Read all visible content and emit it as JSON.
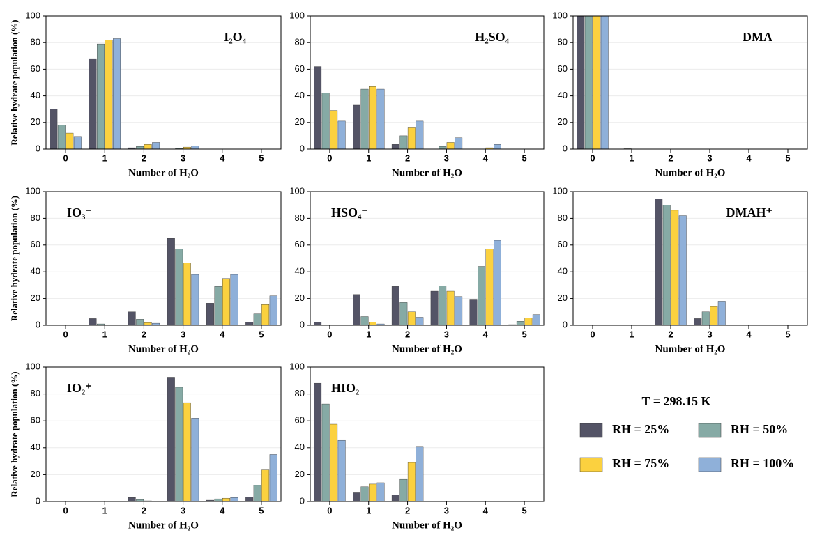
{
  "chart_data": [
    {
      "type": "bar",
      "title": "I₂O₄",
      "xlabel": "Number of H₂O",
      "ylabel": "Relative hydrate population (%)",
      "categories": [
        "0",
        "1",
        "2",
        "3",
        "4",
        "5"
      ],
      "ylim": [
        0,
        100
      ],
      "yticks": [
        0,
        20,
        40,
        60,
        80,
        100
      ],
      "grid": true,
      "series": [
        {
          "values": [
            30,
            68,
            1,
            0,
            0,
            0
          ]
        },
        {
          "values": [
            18,
            79,
            2,
            0.5,
            0,
            0
          ]
        },
        {
          "values": [
            12,
            82,
            3.5,
            1.5,
            0,
            0
          ]
        },
        {
          "values": [
            9.5,
            83,
            5,
            2.5,
            0,
            0
          ]
        }
      ]
    },
    {
      "type": "bar",
      "title": "H₂SO₄",
      "xlabel": "Number of H₂O",
      "categories": [
        "0",
        "1",
        "2",
        "3",
        "4",
        "5"
      ],
      "ylim": [
        0,
        100
      ],
      "yticks": [
        0,
        20,
        40,
        60,
        80,
        100
      ],
      "grid": true,
      "series": [
        {
          "values": [
            62,
            33,
            3.5,
            0,
            0,
            0
          ]
        },
        {
          "values": [
            42,
            45,
            10,
            2,
            0,
            0
          ]
        },
        {
          "values": [
            29,
            47,
            16,
            5,
            1,
            0
          ]
        },
        {
          "values": [
            21,
            45,
            21,
            8.5,
            3.5,
            0
          ]
        }
      ]
    },
    {
      "type": "bar",
      "title": "DMA",
      "xlabel": "Number of H₂O",
      "categories": [
        "0",
        "1",
        "2",
        "3",
        "4",
        "5"
      ],
      "ylim": [
        0,
        100
      ],
      "yticks": [
        0,
        20,
        40,
        60,
        80,
        100
      ],
      "grid": true,
      "series": [
        {
          "values": [
            100,
            0,
            0,
            0,
            0,
            0
          ]
        },
        {
          "values": [
            100,
            0.3,
            0,
            0,
            0,
            0
          ]
        },
        {
          "values": [
            100,
            0,
            0,
            0,
            0,
            0
          ]
        },
        {
          "values": [
            100,
            0,
            0,
            0,
            0,
            0
          ]
        }
      ]
    },
    {
      "type": "bar",
      "title": "IO₃⁻",
      "xlabel": "Number of H₂O",
      "ylabel": "Relative hydrate population (%)",
      "categories": [
        "0",
        "1",
        "2",
        "3",
        "4",
        "5"
      ],
      "ylim": [
        0,
        100
      ],
      "yticks": [
        0,
        20,
        40,
        60,
        80,
        100
      ],
      "grid": true,
      "series": [
        {
          "values": [
            0,
            5,
            10,
            65,
            16.5,
            2.5
          ]
        },
        {
          "values": [
            0,
            1,
            4.5,
            57,
            29,
            8.5
          ]
        },
        {
          "values": [
            0,
            0.3,
            2,
            46.5,
            35,
            15.5
          ]
        },
        {
          "values": [
            0,
            0,
            1.5,
            38,
            38,
            22
          ]
        }
      ]
    },
    {
      "type": "bar",
      "title": "HSO₄⁻",
      "xlabel": "Number of H₂O",
      "categories": [
        "0",
        "1",
        "2",
        "3",
        "4",
        "5"
      ],
      "ylim": [
        0,
        100
      ],
      "yticks": [
        0,
        20,
        40,
        60,
        80,
        100
      ],
      "grid": true,
      "series": [
        {
          "values": [
            2.5,
            23,
            29,
            25.5,
            19,
            0.5
          ]
        },
        {
          "values": [
            0,
            6.5,
            17,
            29.5,
            44,
            3
          ]
        },
        {
          "values": [
            0,
            2.5,
            10,
            25.5,
            57,
            5.5
          ]
        },
        {
          "values": [
            0,
            1,
            6,
            21.5,
            63.5,
            8
          ]
        }
      ]
    },
    {
      "type": "bar",
      "title": "DMAH⁺",
      "xlabel": "Number of H₂O",
      "categories": [
        "0",
        "1",
        "2",
        "3",
        "4",
        "5"
      ],
      "ylim": [
        0,
        100
      ],
      "yticks": [
        0,
        20,
        40,
        60,
        80,
        100
      ],
      "grid": true,
      "series": [
        {
          "values": [
            0,
            0,
            94.5,
            5,
            0,
            0
          ]
        },
        {
          "values": [
            0,
            0,
            90,
            10,
            0,
            0
          ]
        },
        {
          "values": [
            0,
            0,
            86,
            14,
            0,
            0
          ]
        },
        {
          "values": [
            0,
            0,
            82,
            18,
            0,
            0
          ]
        }
      ]
    },
    {
      "type": "bar",
      "title": "IO₂⁺",
      "xlabel": "Number of H₂O",
      "ylabel": "Relative hydrate population (%)",
      "categories": [
        "0",
        "1",
        "2",
        "3",
        "4",
        "5"
      ],
      "ylim": [
        0,
        100
      ],
      "yticks": [
        0,
        20,
        40,
        60,
        80,
        100
      ],
      "grid": true,
      "series": [
        {
          "values": [
            0,
            0,
            3,
            92.5,
            1,
            3.5
          ]
        },
        {
          "values": [
            0,
            0,
            1.5,
            85,
            2,
            12
          ]
        },
        {
          "values": [
            0,
            0,
            0.5,
            73.5,
            2.5,
            23.5
          ]
        },
        {
          "values": [
            0,
            0,
            0,
            62,
            3,
            35
          ]
        }
      ]
    },
    {
      "type": "bar",
      "title": "HIO₂",
      "xlabel": "Number of H₂O",
      "categories": [
        "0",
        "1",
        "2",
        "3",
        "4",
        "5"
      ],
      "ylim": [
        0,
        100
      ],
      "yticks": [
        0,
        20,
        40,
        60,
        80,
        100
      ],
      "grid": true,
      "series": [
        {
          "values": [
            88,
            6.5,
            5,
            0,
            0,
            0
          ]
        },
        {
          "values": [
            72.5,
            11,
            16.5,
            0,
            0,
            0
          ]
        },
        {
          "values": [
            57.5,
            13,
            29,
            0,
            0,
            0
          ]
        },
        {
          "values": [
            45.5,
            14,
            40.5,
            0,
            0,
            0
          ]
        }
      ]
    }
  ],
  "legend": {
    "title": "T = 298.15 K",
    "entries": [
      {
        "name": "RH = 25%",
        "color": "#545466"
      },
      {
        "name": "RH = 50%",
        "color": "#86aaa5"
      },
      {
        "name": "RH = 75%",
        "color": "#fbd13f"
      },
      {
        "name": "RH = 100%",
        "color": "#8fb0d9"
      }
    ]
  }
}
